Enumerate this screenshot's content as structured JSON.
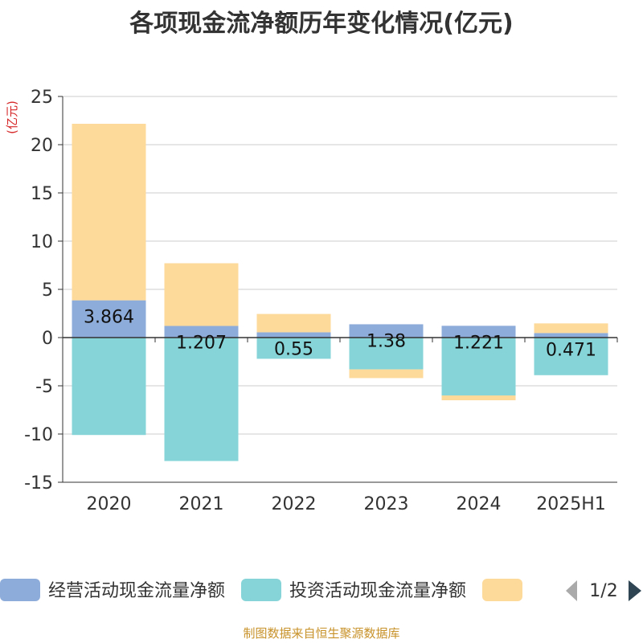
{
  "chart_data": {
    "type": "bar",
    "stacked": true,
    "title": "各项现金流净额历年变化情况(亿元)",
    "ylabel": "(亿元)",
    "categories": [
      "2020",
      "2021",
      "2022",
      "2023",
      "2024",
      "2025H1"
    ],
    "ylim": [
      -15,
      25
    ],
    "yticks": [
      25,
      20,
      15,
      10,
      5,
      0,
      -5,
      -10,
      -15
    ],
    "grid": true,
    "series": [
      {
        "name": "经营活动现金流量净额",
        "color": "#8eacd9",
        "values": [
          3.864,
          1.207,
          0.55,
          1.38,
          1.221,
          0.471
        ],
        "labels": [
          "3.864",
          "1.207",
          "0.55",
          "1.38",
          "1.221",
          "0.471"
        ]
      },
      {
        "name": "投资活动现金流量净额",
        "color": "#86d4d8",
        "values": [
          -10.1,
          -12.8,
          -2.2,
          -3.3,
          -6.0,
          -3.9
        ]
      },
      {
        "name": "",
        "color": "#fdd99a",
        "values": [
          18.3,
          6.5,
          1.9,
          -0.9,
          -0.5,
          1.0
        ]
      }
    ],
    "legend": {
      "position": "bottom",
      "page": "1/2"
    }
  },
  "source": "制图数据来自恒生聚源数据库"
}
